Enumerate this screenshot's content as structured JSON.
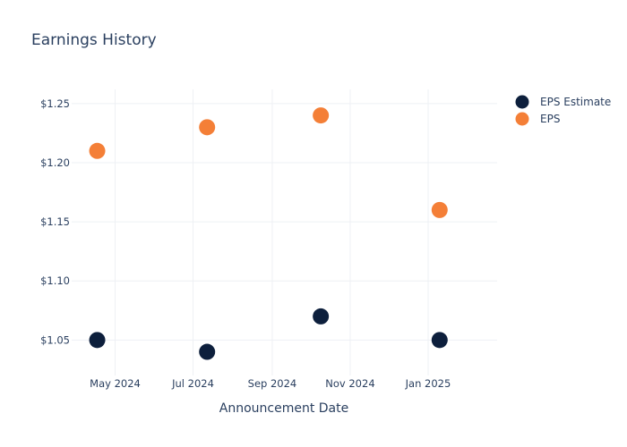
{
  "chart_data": {
    "type": "scatter",
    "title": "Earnings History",
    "xlabel": "Announcement Date",
    "ylabel": "",
    "x_ticks": [
      {
        "date": "2024-05-01",
        "label": "May 2024"
      },
      {
        "date": "2024-07-01",
        "label": "Jul 2024"
      },
      {
        "date": "2024-09-01",
        "label": "Sep 2024"
      },
      {
        "date": "2024-11-01",
        "label": "Nov 2024"
      },
      {
        "date": "2025-01-01",
        "label": "Jan 2025"
      }
    ],
    "xlim": [
      "2024-03-28",
      "2025-02-24"
    ],
    "y_ticks": [
      {
        "value": 1.05,
        "label": "$1.05"
      },
      {
        "value": 1.1,
        "label": "$1.10"
      },
      {
        "value": 1.15,
        "label": "$1.15"
      },
      {
        "value": 1.2,
        "label": "$1.20"
      },
      {
        "value": 1.25,
        "label": "$1.25"
      }
    ],
    "ylim": [
      1.02,
      1.262
    ],
    "grid": true,
    "legend_position": "top-right",
    "series": [
      {
        "name": "EPS Estimate",
        "color": "#0d1f3c",
        "points": [
          {
            "x": "2024-04-17",
            "y": 1.05
          },
          {
            "x": "2024-07-12",
            "y": 1.04
          },
          {
            "x": "2024-10-09",
            "y": 1.07
          },
          {
            "x": "2025-01-10",
            "y": 1.05
          }
        ]
      },
      {
        "name": "EPS",
        "color": "#f47f37",
        "points": [
          {
            "x": "2024-04-17",
            "y": 1.21
          },
          {
            "x": "2024-07-12",
            "y": 1.23
          },
          {
            "x": "2024-10-09",
            "y": 1.24
          },
          {
            "x": "2025-01-10",
            "y": 1.16
          }
        ]
      }
    ]
  }
}
